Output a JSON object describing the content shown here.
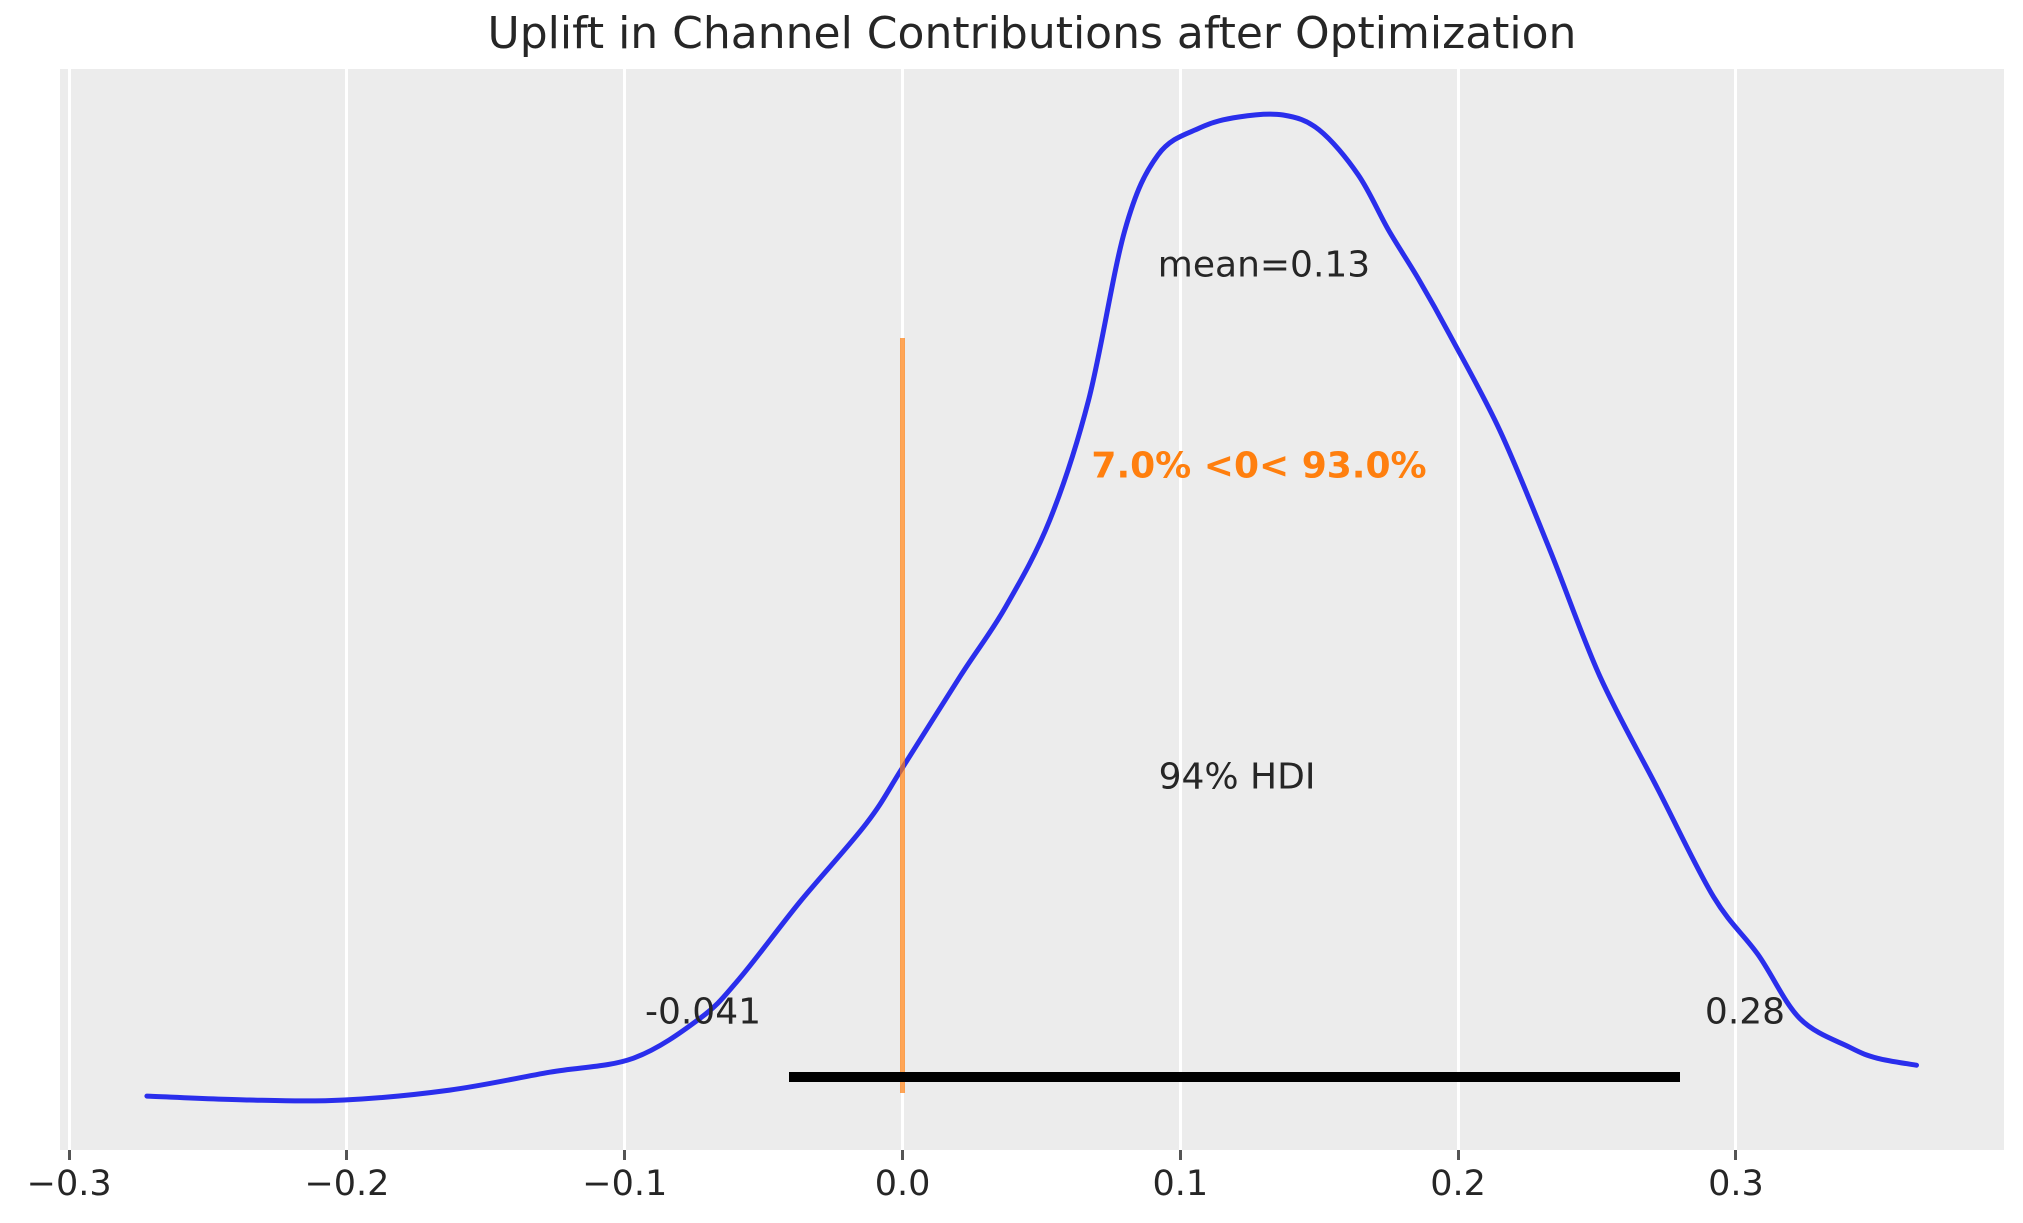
{
  "title": "Uplift in Channel Contributions after Optimization",
  "colors": {
    "plot_background": "#ececec",
    "page_background": "#ffffff",
    "kde_line": "#2a2eec",
    "reference_line": "rgba(255,127,14,0.7)",
    "reference_text": "#ff7f0e",
    "hdi_line": "#000000",
    "text": "#262626",
    "gridline": "#ffffff"
  },
  "chart_data": {
    "type": "line",
    "subtype": "posterior-density-kde",
    "title": "Uplift in Channel Contributions after Optimization",
    "xlabel": "",
    "ylabel": "",
    "xlim": [
      -0.3033,
      0.3965
    ],
    "ylim_density": [
      -0.041,
      1.045
    ],
    "grid": "vertical white gridlines on gray panel",
    "legend": "none",
    "x_ticks": [
      -0.3,
      -0.2,
      -0.1,
      0.0,
      0.1,
      0.2,
      0.3
    ],
    "x_tick_labels": [
      "−0.3",
      "−0.2",
      "−0.1",
      "0.0",
      "0.1",
      "0.2",
      "0.3"
    ],
    "mean": 0.13,
    "hdi_prob": 0.94,
    "hdi_lower": -0.041,
    "hdi_upper": 0.28,
    "ref_value": 0,
    "prob_below_ref_pct": 7.0,
    "prob_above_ref_pct": 93.0,
    "annotations": {
      "mean_label": "mean=0.13",
      "ref_label": "7.0% <0< 93.0%",
      "hdi_label": "94% HDI",
      "hdi_lower_label": "-0.041",
      "hdi_upper_label": "0.28"
    },
    "kde": {
      "x": [
        -0.272,
        -0.235,
        -0.201,
        -0.163,
        -0.127,
        -0.097,
        -0.073,
        -0.059,
        -0.037,
        -0.013,
        0.0,
        0.021,
        0.037,
        0.053,
        0.067,
        0.08,
        0.092,
        0.107,
        0.121,
        0.137,
        0.15,
        0.164,
        0.175,
        0.186,
        0.197,
        0.215,
        0.233,
        0.251,
        0.272,
        0.292,
        0.308,
        0.323,
        0.341,
        0.351,
        0.365
      ],
      "density_normalized": [
        0.013,
        0.009,
        0.009,
        0.019,
        0.037,
        0.051,
        0.091,
        0.13,
        0.208,
        0.287,
        0.343,
        0.436,
        0.504,
        0.592,
        0.713,
        0.883,
        0.959,
        0.986,
        0.997,
        0.999,
        0.984,
        0.939,
        0.883,
        0.833,
        0.778,
        0.682,
        0.562,
        0.435,
        0.321,
        0.213,
        0.155,
        0.091,
        0.062,
        0.051,
        0.044
      ]
    }
  }
}
